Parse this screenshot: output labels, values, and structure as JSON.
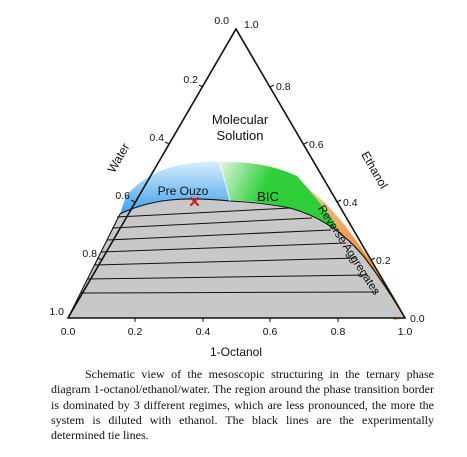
{
  "axes": {
    "bottom": {
      "title": "1-Octanol",
      "ticks": [
        "0.0",
        "0.2",
        "0.4",
        "0.6",
        "0.8",
        "1.0"
      ]
    },
    "left": {
      "title": "Water",
      "ticks": [
        "1.0",
        "0.8",
        "0.6",
        "0.4",
        "0.2",
        "0.0"
      ]
    },
    "right": {
      "title": "Ethanol",
      "ticks": [
        "0.0",
        "0.2",
        "0.4",
        "0.6",
        "0.8",
        "1.0"
      ]
    }
  },
  "regions": {
    "molecular_line1": "Molecular",
    "molecular_line2": "Solution",
    "pre_ouzo": "Pre Ouzo",
    "bic": "BIC",
    "reverse": "Reverse Aggregates"
  },
  "colors": {
    "two_phase": "#c8c8c8",
    "pre_ouzo": "#3aa0ee",
    "bic": "#2fcf3a",
    "reverse": "#f08a2a",
    "marker": "#cc2222"
  },
  "caption": "Schematic view of the mesoscopic structuring in the ternary phase diagram 1-octanol/ethanol/water. The region around the phase transition border is dominated by 3 different regimes, which are less pronounced, the more the system is diluted with ethanol. The black lines are the experimentally determined tie lines."
}
